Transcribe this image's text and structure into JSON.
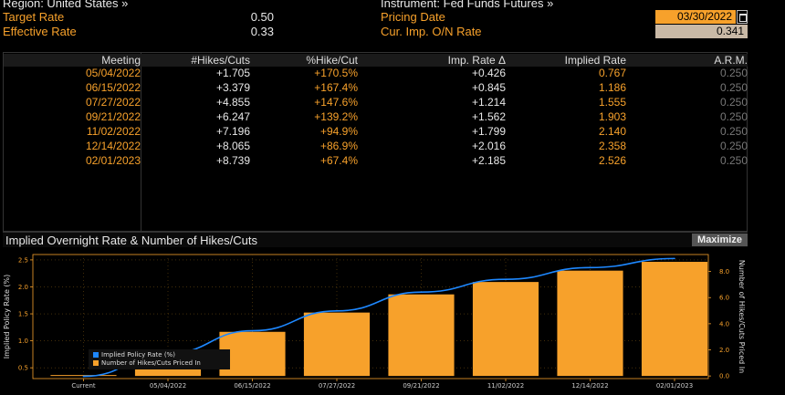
{
  "header": {
    "region_label": "Region: United States »",
    "target_rate_label": "Target Rate",
    "target_rate_value": "0.50",
    "effective_rate_label": "Effective Rate",
    "effective_rate_value": "0.33",
    "instrument_label": "Instrument: Fed Funds Futures »",
    "pricing_date_label": "Pricing Date",
    "pricing_date_value": "03/30/2022",
    "cur_imp_label": "Cur. Imp. O/N Rate",
    "cur_imp_value": "0.341"
  },
  "table": {
    "columns": [
      "Meeting",
      "#Hikes/Cuts",
      "%Hike/Cut",
      "Imp. Rate Δ",
      "Implied Rate",
      "A.R.M."
    ],
    "rows": [
      {
        "meeting": "05/04/2022",
        "hikes": "+1.705",
        "pct": "+170.5%",
        "delta": "+0.426",
        "implied": "0.767",
        "arm": "0.250"
      },
      {
        "meeting": "06/15/2022",
        "hikes": "+3.379",
        "pct": "+167.4%",
        "delta": "+0.845",
        "implied": "1.186",
        "arm": "0.250"
      },
      {
        "meeting": "07/27/2022",
        "hikes": "+4.855",
        "pct": "+147.6%",
        "delta": "+1.214",
        "implied": "1.555",
        "arm": "0.250"
      },
      {
        "meeting": "09/21/2022",
        "hikes": "+6.247",
        "pct": "+139.2%",
        "delta": "+1.562",
        "implied": "1.903",
        "arm": "0.250"
      },
      {
        "meeting": "11/02/2022",
        "hikes": "+7.196",
        "pct": "+94.9%",
        "delta": "+1.799",
        "implied": "2.140",
        "arm": "0.250"
      },
      {
        "meeting": "12/14/2022",
        "hikes": "+8.065",
        "pct": "+86.9%",
        "delta": "+2.016",
        "implied": "2.358",
        "arm": "0.250"
      },
      {
        "meeting": "02/01/2023",
        "hikes": "+8.739",
        "pct": "+67.4%",
        "delta": "+2.185",
        "implied": "2.526",
        "arm": "0.250"
      }
    ]
  },
  "chart_panel": {
    "title": "Implied Overnight Rate & Number of Hikes/Cuts",
    "maximize_label": "Maximize"
  },
  "chart_data": {
    "type": "bar",
    "categories": [
      "Current",
      "05/04/2022",
      "06/15/2022",
      "07/27/2022",
      "09/21/2022",
      "11/02/2022",
      "12/14/2022",
      "02/01/2023"
    ],
    "series": [
      {
        "name": "Implied Policy Rate (%)",
        "type": "line",
        "axis": "left",
        "color": "#1e88ff",
        "values": [
          0.341,
          0.767,
          1.186,
          1.555,
          1.903,
          2.14,
          2.358,
          2.526
        ]
      },
      {
        "name": "Number of Hikes/Cuts Priced In",
        "type": "bar",
        "axis": "right",
        "color": "#f7a12b",
        "values": [
          0.0,
          1.705,
          3.379,
          4.855,
          6.247,
          7.196,
          8.065,
          8.739
        ]
      }
    ],
    "ylabel": "Implied Policy Rate (%)",
    "y2label": "Number of Hikes/Cuts Priced In",
    "yticks": [
      "0.5",
      "1.0",
      "1.5",
      "2.0",
      "2.5"
    ],
    "y2ticks": [
      "0.0",
      "2.0",
      "4.0",
      "6.0",
      "8.0"
    ],
    "ylim": [
      0.3,
      2.6
    ],
    "y2lim": [
      -0.2,
      9.3
    ],
    "legend_position": "bottom-left",
    "grid": true
  },
  "colors": {
    "accent": "#f7a12b",
    "line": "#1e88ff",
    "background": "#000000"
  }
}
